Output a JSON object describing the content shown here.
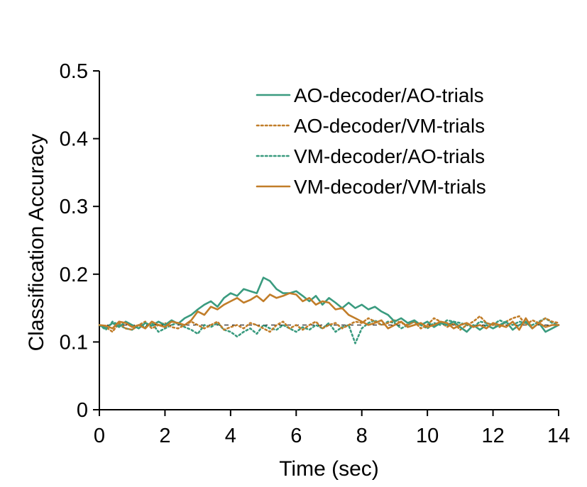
{
  "chart_data": {
    "type": "line",
    "xlabel": "Time (sec)",
    "ylabel": "Classification Accuracy",
    "xlim": [
      0,
      14
    ],
    "ylim": [
      0,
      0.5
    ],
    "xticks": [
      "0",
      "2",
      "4",
      "6",
      "8",
      "10",
      "12",
      "14"
    ],
    "yticks": [
      "0",
      "0.1",
      "0.2",
      "0.3",
      "0.4",
      "0.5"
    ],
    "chance_level": 0.125,
    "legend_position": "top-right",
    "colors": {
      "teal": "#3a9b7f",
      "orange": "#c17d29"
    },
    "x": [
      0,
      0.2,
      0.4,
      0.6,
      0.8,
      1,
      1.2,
      1.4,
      1.6,
      1.8,
      2,
      2.2,
      2.4,
      2.6,
      2.8,
      3,
      3.2,
      3.4,
      3.6,
      3.8,
      4,
      4.2,
      4.4,
      4.6,
      4.8,
      5,
      5.2,
      5.4,
      5.6,
      5.8,
      6,
      6.2,
      6.4,
      6.6,
      6.8,
      7,
      7.2,
      7.4,
      7.6,
      7.8,
      8,
      8.2,
      8.4,
      8.6,
      8.8,
      9,
      9.2,
      9.4,
      9.6,
      9.8,
      10,
      10.2,
      10.4,
      10.6,
      10.8,
      11,
      11.2,
      11.4,
      11.6,
      11.8,
      12,
      12.2,
      12.4,
      12.6,
      12.8,
      13,
      13.2,
      13.4,
      13.6,
      13.8,
      14
    ],
    "series": [
      {
        "name": "AO-decoder/AO-trials",
        "color": "#3a9b7f",
        "dash": "solid",
        "values": [
          0.125,
          0.12,
          0.128,
          0.122,
          0.13,
          0.125,
          0.12,
          0.128,
          0.124,
          0.13,
          0.125,
          0.132,
          0.127,
          0.135,
          0.14,
          0.148,
          0.155,
          0.16,
          0.152,
          0.165,
          0.172,
          0.168,
          0.178,
          0.175,
          0.172,
          0.195,
          0.19,
          0.178,
          0.172,
          0.172,
          0.175,
          0.168,
          0.16,
          0.168,
          0.155,
          0.165,
          0.158,
          0.15,
          0.158,
          0.15,
          0.155,
          0.148,
          0.152,
          0.145,
          0.14,
          0.13,
          0.135,
          0.128,
          0.132,
          0.125,
          0.13,
          0.122,
          0.128,
          0.125,
          0.13,
          0.122,
          0.115,
          0.125,
          0.118,
          0.125,
          0.12,
          0.125,
          0.13,
          0.118,
          0.125,
          0.13,
          0.12,
          0.128,
          0.115,
          0.12,
          0.125
        ]
      },
      {
        "name": "AO-decoder/VM-trials",
        "color": "#c17d29",
        "dash": "dotted",
        "values": [
          0.125,
          0.122,
          0.115,
          0.128,
          0.12,
          0.118,
          0.125,
          0.13,
          0.12,
          0.125,
          0.128,
          0.122,
          0.12,
          0.125,
          0.13,
          0.125,
          0.12,
          0.125,
          0.13,
          0.118,
          0.122,
          0.125,
          0.12,
          0.128,
          0.125,
          0.12,
          0.115,
          0.125,
          0.13,
          0.12,
          0.125,
          0.118,
          0.125,
          0.13,
          0.12,
          0.125,
          0.128,
          0.12,
          0.125,
          0.13,
          0.128,
          0.135,
          0.13,
          0.125,
          0.128,
          0.132,
          0.128,
          0.125,
          0.13,
          0.12,
          0.125,
          0.135,
          0.13,
          0.122,
          0.128,
          0.118,
          0.125,
          0.13,
          0.138,
          0.128,
          0.125,
          0.122,
          0.13,
          0.135,
          0.138,
          0.125,
          0.132,
          0.128,
          0.135,
          0.13,
          0.128
        ]
      },
      {
        "name": "VM-decoder/AO-trials",
        "color": "#3a9b7f",
        "dash": "dotted",
        "values": [
          0.125,
          0.118,
          0.13,
          0.125,
          0.12,
          0.118,
          0.125,
          0.122,
          0.128,
          0.115,
          0.12,
          0.125,
          0.128,
          0.122,
          0.118,
          0.112,
          0.125,
          0.122,
          0.128,
          0.118,
          0.115,
          0.108,
          0.115,
          0.12,
          0.112,
          0.125,
          0.12,
          0.118,
          0.125,
          0.12,
          0.115,
          0.122,
          0.118,
          0.125,
          0.12,
          0.128,
          0.115,
          0.122,
          0.125,
          0.098,
          0.12,
          0.128,
          0.132,
          0.125,
          0.13,
          0.128,
          0.12,
          0.125,
          0.13,
          0.125,
          0.12,
          0.128,
          0.125,
          0.132,
          0.13,
          0.128,
          0.125,
          0.122,
          0.13,
          0.128,
          0.125,
          0.132,
          0.128,
          0.125,
          0.13,
          0.128,
          0.125,
          0.13,
          0.135,
          0.128,
          0.125
        ]
      },
      {
        "name": "VM-decoder/VM-trials",
        "color": "#c17d29",
        "dash": "solid",
        "values": [
          0.125,
          0.124,
          0.12,
          0.13,
          0.128,
          0.122,
          0.125,
          0.12,
          0.13,
          0.125,
          0.122,
          0.13,
          0.128,
          0.125,
          0.132,
          0.145,
          0.14,
          0.152,
          0.148,
          0.155,
          0.16,
          0.165,
          0.158,
          0.162,
          0.168,
          0.16,
          0.17,
          0.165,
          0.168,
          0.172,
          0.17,
          0.16,
          0.165,
          0.155,
          0.16,
          0.158,
          0.148,
          0.15,
          0.14,
          0.135,
          0.13,
          0.125,
          0.128,
          0.132,
          0.12,
          0.125,
          0.13,
          0.122,
          0.125,
          0.128,
          0.122,
          0.125,
          0.13,
          0.128,
          0.12,
          0.125,
          0.128,
          0.122,
          0.125,
          0.12,
          0.128,
          0.125,
          0.122,
          0.13,
          0.118,
          0.135,
          0.12,
          0.128,
          0.122,
          0.125,
          0.125
        ]
      }
    ]
  }
}
